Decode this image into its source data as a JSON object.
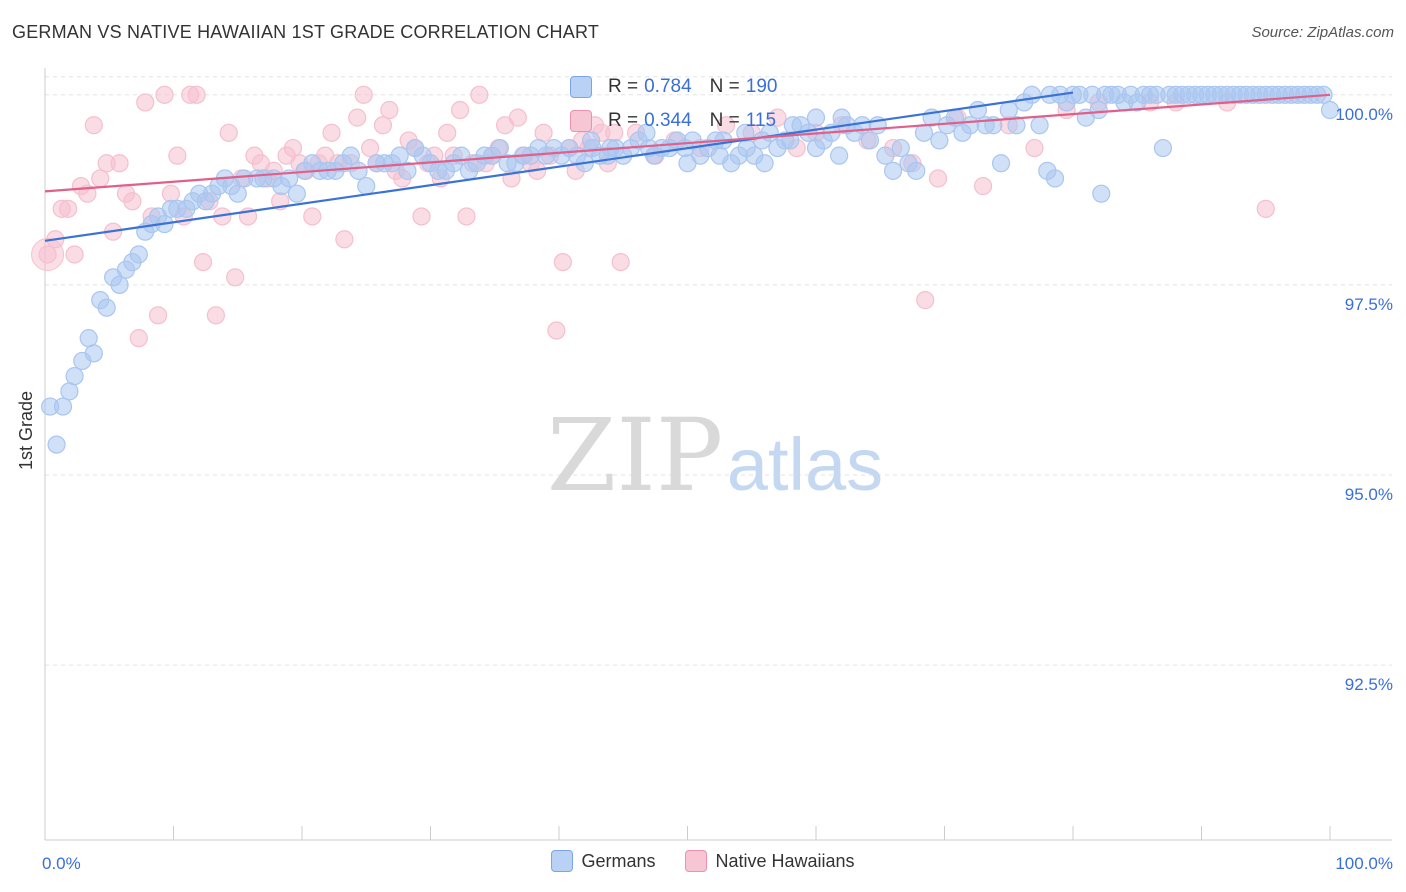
{
  "title": "GERMAN VS NATIVE HAWAIIAN 1ST GRADE CORRELATION CHART",
  "source": "Source: ZipAtlas.com",
  "watermark": {
    "zip": "ZIP",
    "atlas": "atlas"
  },
  "stats": [
    {
      "name": "Germans",
      "r_label": "R =",
      "r": "0.784",
      "n_label": "N =",
      "n": "190",
      "color": "#7aa6e8",
      "fill": "#b9d1f5"
    },
    {
      "name": "Native Hawaiians",
      "r_label": "R =",
      "r": "0.344",
      "n_label": "N =",
      "n": "115",
      "color": "#ef90ad",
      "fill": "#f7c6d5"
    }
  ],
  "chart_data": {
    "type": "scatter",
    "title": "GERMAN VS NATIVE HAWAIIAN 1ST GRADE CORRELATION CHART",
    "xlabel": "",
    "ylabel": "1st Grade",
    "xlim": [
      0,
      100
    ],
    "ylim": [
      90.2,
      100.3
    ],
    "x_tick_labels": [
      "0.0%",
      "100.0%"
    ],
    "y_ticks": [
      92.5,
      95.0,
      97.5,
      100.0
    ],
    "y_tick_labels": [
      "92.5%",
      "95.0%",
      "97.5%",
      "100.0%"
    ],
    "grid": true,
    "legend": "bottom-center",
    "series": [
      {
        "name": "Germans",
        "color": "#3a72d6",
        "fill": "#a9c6f0",
        "trend": {
          "x": [
            0,
            80
          ],
          "y": [
            98.08,
            100.03
          ]
        },
        "points": [
          [
            0.4,
            95.9
          ],
          [
            0.9,
            95.4
          ],
          [
            1.4,
            95.9
          ],
          [
            1.9,
            96.1
          ],
          [
            2.3,
            96.3
          ],
          [
            2.9,
            96.5
          ],
          [
            3.4,
            96.8
          ],
          [
            3.8,
            96.6
          ],
          [
            4.3,
            97.3
          ],
          [
            4.8,
            97.2
          ],
          [
            5.3,
            97.6
          ],
          [
            5.8,
            97.5
          ],
          [
            6.3,
            97.7
          ],
          [
            6.8,
            97.8
          ],
          [
            7.3,
            97.9
          ],
          [
            7.8,
            98.2
          ],
          [
            8.3,
            98.3
          ],
          [
            8.8,
            98.4
          ],
          [
            9.3,
            98.3
          ],
          [
            9.8,
            98.5
          ],
          [
            10.3,
            98.5
          ],
          [
            11.0,
            98.5
          ],
          [
            11.5,
            98.6
          ],
          [
            12.0,
            98.7
          ],
          [
            12.5,
            98.6
          ],
          [
            13.0,
            98.7
          ],
          [
            13.5,
            98.8
          ],
          [
            14.0,
            98.9
          ],
          [
            14.5,
            98.8
          ],
          [
            15.0,
            98.7
          ],
          [
            15.5,
            98.9
          ],
          [
            16.5,
            98.9
          ],
          [
            17.0,
            98.9
          ],
          [
            17.8,
            98.9
          ],
          [
            18.4,
            98.8
          ],
          [
            19.0,
            98.9
          ],
          [
            19.6,
            98.7
          ],
          [
            20.2,
            99.0
          ],
          [
            20.8,
            99.1
          ],
          [
            21.4,
            99.0
          ],
          [
            22.0,
            99.0
          ],
          [
            22.6,
            99.0
          ],
          [
            23.2,
            99.1
          ],
          [
            23.8,
            99.2
          ],
          [
            24.4,
            99.0
          ],
          [
            25.0,
            98.8
          ],
          [
            25.8,
            99.1
          ],
          [
            26.4,
            99.1
          ],
          [
            27.0,
            99.1
          ],
          [
            27.6,
            99.2
          ],
          [
            28.2,
            99.0
          ],
          [
            28.8,
            99.3
          ],
          [
            29.4,
            99.2
          ],
          [
            30.0,
            99.1
          ],
          [
            30.6,
            99.0
          ],
          [
            31.2,
            99.0
          ],
          [
            31.8,
            99.1
          ],
          [
            32.4,
            99.2
          ],
          [
            33.0,
            99.0
          ],
          [
            33.6,
            99.1
          ],
          [
            34.2,
            99.2
          ],
          [
            34.8,
            99.2
          ],
          [
            35.4,
            99.3
          ],
          [
            36.0,
            99.1
          ],
          [
            36.6,
            99.1
          ],
          [
            37.2,
            99.2
          ],
          [
            37.8,
            99.2
          ],
          [
            38.4,
            99.3
          ],
          [
            39.0,
            99.2
          ],
          [
            39.6,
            99.3
          ],
          [
            40.2,
            99.2
          ],
          [
            40.8,
            99.3
          ],
          [
            41.4,
            99.2
          ],
          [
            42.0,
            99.1
          ],
          [
            42.6,
            99.3
          ],
          [
            43.2,
            99.2
          ],
          [
            43.8,
            99.2
          ],
          [
            44.4,
            99.3
          ],
          [
            45.0,
            99.2
          ],
          [
            45.6,
            99.3
          ],
          [
            46.2,
            99.4
          ],
          [
            46.8,
            99.5
          ],
          [
            47.4,
            99.2
          ],
          [
            48.0,
            99.3
          ],
          [
            48.6,
            99.3
          ],
          [
            49.2,
            99.4
          ],
          [
            49.8,
            99.3
          ],
          [
            50.4,
            99.4
          ],
          [
            51.0,
            99.2
          ],
          [
            51.6,
            99.3
          ],
          [
            52.2,
            99.4
          ],
          [
            52.8,
            99.4
          ],
          [
            53.4,
            99.1
          ],
          [
            54.0,
            99.2
          ],
          [
            54.6,
            99.3
          ],
          [
            55.2,
            99.2
          ],
          [
            55.8,
            99.4
          ],
          [
            56.4,
            99.5
          ],
          [
            57.0,
            99.3
          ],
          [
            57.6,
            99.4
          ],
          [
            58.2,
            99.6
          ],
          [
            58.8,
            99.6
          ],
          [
            59.4,
            99.5
          ],
          [
            60.0,
            99.3
          ],
          [
            60.6,
            99.4
          ],
          [
            61.2,
            99.5
          ],
          [
            61.8,
            99.2
          ],
          [
            62.4,
            99.6
          ],
          [
            63.0,
            99.5
          ],
          [
            63.6,
            99.6
          ],
          [
            64.2,
            99.4
          ],
          [
            64.8,
            99.6
          ],
          [
            65.4,
            99.2
          ],
          [
            66.0,
            99.0
          ],
          [
            66.6,
            99.3
          ],
          [
            67.2,
            99.1
          ],
          [
            67.8,
            99.0
          ],
          [
            68.4,
            99.5
          ],
          [
            69.0,
            99.7
          ],
          [
            69.6,
            99.4
          ],
          [
            70.2,
            99.6
          ],
          [
            70.8,
            99.7
          ],
          [
            71.4,
            99.5
          ],
          [
            72.0,
            99.6
          ],
          [
            72.6,
            99.8
          ],
          [
            73.2,
            99.6
          ],
          [
            73.8,
            99.6
          ],
          [
            74.4,
            99.1
          ],
          [
            75.0,
            99.8
          ],
          [
            75.6,
            99.6
          ],
          [
            76.2,
            99.9
          ],
          [
            76.8,
            100.0
          ],
          [
            77.4,
            99.6
          ],
          [
            78.0,
            99.0
          ],
          [
            78.6,
            98.9
          ],
          [
            79.0,
            100.0
          ],
          [
            79.5,
            99.9
          ],
          [
            80.0,
            100.0
          ],
          [
            80.5,
            100.0
          ],
          [
            81.0,
            99.7
          ],
          [
            81.5,
            100.0
          ],
          [
            82.0,
            99.8
          ],
          [
            82.5,
            100.0
          ],
          [
            83.0,
            100.0
          ],
          [
            83.5,
            100.0
          ],
          [
            84.0,
            99.9
          ],
          [
            84.5,
            100.0
          ],
          [
            85.0,
            99.9
          ],
          [
            85.5,
            100.0
          ],
          [
            86.0,
            100.0
          ],
          [
            86.5,
            100.0
          ],
          [
            87.0,
            99.3
          ],
          [
            87.5,
            100.0
          ],
          [
            88.0,
            100.0
          ],
          [
            88.5,
            100.0
          ],
          [
            89.0,
            100.0
          ],
          [
            89.5,
            100.0
          ],
          [
            90.0,
            100.0
          ],
          [
            90.5,
            100.0
          ],
          [
            91.0,
            100.0
          ],
          [
            91.5,
            100.0
          ],
          [
            92.0,
            100.0
          ],
          [
            92.5,
            100.0
          ],
          [
            93.0,
            100.0
          ],
          [
            93.5,
            100.0
          ],
          [
            94.0,
            100.0
          ],
          [
            94.5,
            100.0
          ],
          [
            95.0,
            100.0
          ],
          [
            95.5,
            100.0
          ],
          [
            96.0,
            100.0
          ],
          [
            96.5,
            100.0
          ],
          [
            97.0,
            100.0
          ],
          [
            97.5,
            100.0
          ],
          [
            98.0,
            100.0
          ],
          [
            98.5,
            100.0
          ],
          [
            99.0,
            100.0
          ],
          [
            99.5,
            100.0
          ],
          [
            100.0,
            99.8
          ],
          [
            78.2,
            100.0
          ],
          [
            82.2,
            98.7
          ],
          [
            60.0,
            99.7
          ],
          [
            62.0,
            99.7
          ],
          [
            58.0,
            99.4
          ],
          [
            56.0,
            99.1
          ],
          [
            54.5,
            99.5
          ],
          [
            52.5,
            99.2
          ],
          [
            50.0,
            99.1
          ],
          [
            47.0,
            99.3
          ],
          [
            44.0,
            99.3
          ],
          [
            42.5,
            99.4
          ]
        ]
      },
      {
        "name": "Native Hawaiians",
        "color": "#e0608a",
        "fill": "#f5bfcf",
        "trend": {
          "x": [
            0,
            100
          ],
          "y": [
            98.73,
            100.0
          ]
        },
        "points": [
          [
            0.2,
            97.9
          ],
          [
            0.8,
            98.1
          ],
          [
            1.3,
            98.5
          ],
          [
            1.8,
            98.5
          ],
          [
            2.3,
            97.9
          ],
          [
            2.8,
            98.8
          ],
          [
            3.3,
            98.7
          ],
          [
            3.8,
            99.6
          ],
          [
            4.3,
            98.9
          ],
          [
            4.8,
            99.1
          ],
          [
            5.3,
            98.2
          ],
          [
            5.8,
            99.1
          ],
          [
            6.3,
            98.7
          ],
          [
            6.8,
            98.6
          ],
          [
            7.3,
            96.8
          ],
          [
            7.8,
            99.9
          ],
          [
            8.3,
            98.4
          ],
          [
            8.8,
            97.1
          ],
          [
            9.3,
            100.0
          ],
          [
            9.8,
            98.7
          ],
          [
            10.3,
            99.2
          ],
          [
            10.8,
            98.4
          ],
          [
            11.3,
            100.0
          ],
          [
            11.8,
            100.0
          ],
          [
            12.3,
            97.8
          ],
          [
            12.8,
            98.6
          ],
          [
            13.3,
            97.1
          ],
          [
            13.8,
            98.4
          ],
          [
            14.3,
            99.5
          ],
          [
            14.8,
            97.6
          ],
          [
            15.3,
            98.9
          ],
          [
            15.8,
            98.4
          ],
          [
            16.3,
            99.2
          ],
          [
            16.8,
            99.1
          ],
          [
            17.3,
            98.9
          ],
          [
            17.8,
            99.0
          ],
          [
            18.3,
            98.6
          ],
          [
            18.8,
            99.2
          ],
          [
            19.3,
            99.3
          ],
          [
            19.8,
            99.1
          ],
          [
            20.3,
            99.0
          ],
          [
            20.8,
            98.4
          ],
          [
            21.3,
            99.1
          ],
          [
            21.8,
            99.2
          ],
          [
            22.3,
            99.5
          ],
          [
            22.8,
            99.1
          ],
          [
            23.3,
            98.1
          ],
          [
            23.8,
            99.1
          ],
          [
            24.3,
            99.7
          ],
          [
            24.8,
            100.0
          ],
          [
            25.3,
            99.3
          ],
          [
            25.8,
            99.1
          ],
          [
            26.3,
            99.6
          ],
          [
            26.8,
            99.8
          ],
          [
            27.3,
            99.0
          ],
          [
            27.8,
            98.9
          ],
          [
            28.3,
            99.4
          ],
          [
            28.8,
            99.3
          ],
          [
            29.3,
            98.4
          ],
          [
            29.8,
            99.1
          ],
          [
            30.3,
            99.2
          ],
          [
            30.8,
            98.9
          ],
          [
            31.3,
            99.5
          ],
          [
            31.8,
            99.2
          ],
          [
            32.3,
            99.8
          ],
          [
            32.8,
            98.4
          ],
          [
            33.3,
            99.1
          ],
          [
            33.8,
            100.0
          ],
          [
            34.3,
            99.1
          ],
          [
            34.8,
            99.2
          ],
          [
            35.3,
            99.3
          ],
          [
            35.8,
            99.6
          ],
          [
            36.3,
            98.9
          ],
          [
            36.8,
            99.7
          ],
          [
            37.3,
            99.2
          ],
          [
            37.8,
            99.1
          ],
          [
            38.3,
            99.0
          ],
          [
            38.8,
            99.5
          ],
          [
            39.3,
            99.2
          ],
          [
            39.8,
            96.9
          ],
          [
            40.3,
            97.8
          ],
          [
            40.8,
            99.3
          ],
          [
            41.3,
            99.0
          ],
          [
            41.8,
            99.4
          ],
          [
            42.3,
            99.3
          ],
          [
            42.8,
            99.6
          ],
          [
            43.3,
            99.5
          ],
          [
            43.8,
            99.1
          ],
          [
            44.3,
            99.5
          ],
          [
            44.8,
            97.8
          ],
          [
            46.0,
            99.5
          ],
          [
            47.5,
            99.2
          ],
          [
            49.0,
            99.4
          ],
          [
            51.0,
            99.3
          ],
          [
            53.0,
            99.6
          ],
          [
            55.0,
            99.5
          ],
          [
            57.0,
            99.7
          ],
          [
            58.5,
            99.3
          ],
          [
            60.0,
            99.5
          ],
          [
            62.0,
            99.6
          ],
          [
            64.0,
            99.4
          ],
          [
            66.0,
            99.3
          ],
          [
            67.5,
            99.1
          ],
          [
            68.5,
            97.3
          ],
          [
            69.5,
            98.9
          ],
          [
            71.0,
            99.7
          ],
          [
            73.0,
            98.8
          ],
          [
            75.0,
            99.6
          ],
          [
            77.0,
            99.3
          ],
          [
            79.5,
            99.8
          ],
          [
            82.0,
            99.9
          ],
          [
            86.0,
            99.9
          ],
          [
            88.0,
            99.9
          ],
          [
            92.0,
            99.9
          ],
          [
            95.0,
            98.5
          ]
        ]
      }
    ]
  }
}
